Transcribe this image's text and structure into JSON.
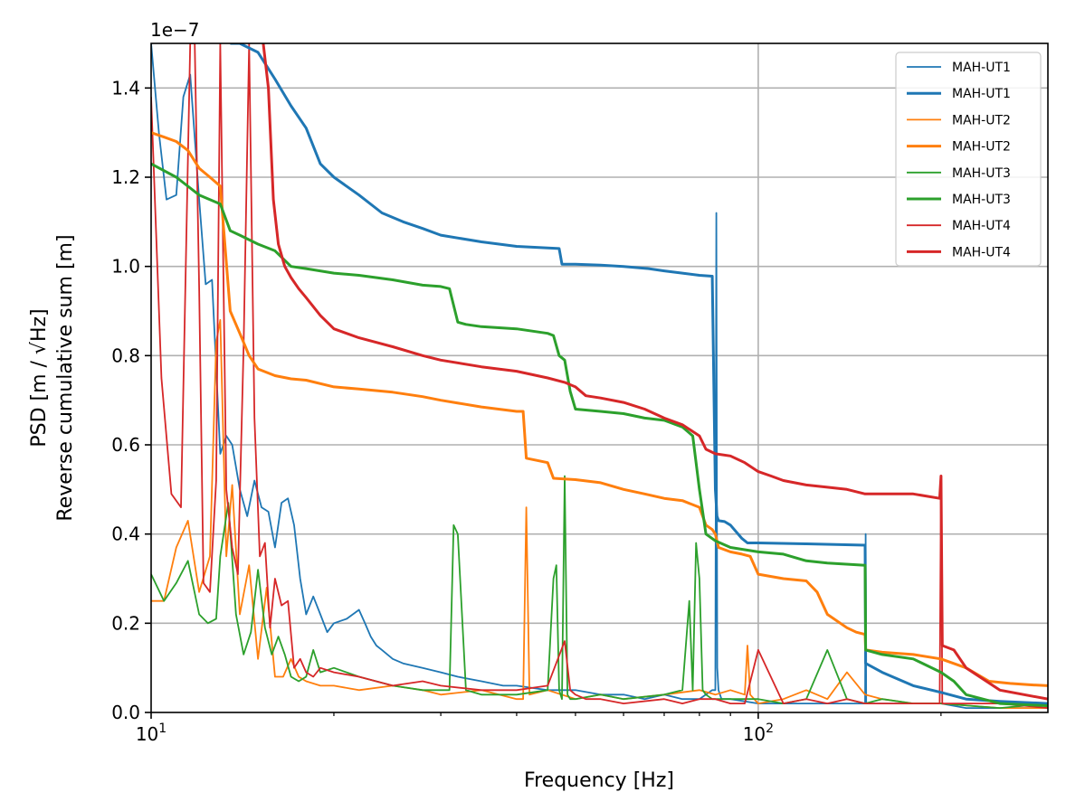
{
  "chart_data": {
    "type": "line",
    "xscale": "log",
    "xlim": [
      10,
      300
    ],
    "ylim": [
      0,
      1.5
    ],
    "y_multiplier_label": "1e−7",
    "xlabel": "Frequency [Hz]",
    "ylabel_line1": "PSD [m / √Hz]",
    "ylabel_line2": "Reverse cumulative sum [m]",
    "x_ticks": [
      {
        "value": 10,
        "base": "10",
        "exp": "1"
      },
      {
        "value": 100,
        "base": "10",
        "exp": "2"
      }
    ],
    "y_ticks": [
      {
        "value": 0.0,
        "label": "0.0"
      },
      {
        "value": 0.2,
        "label": "0.2"
      },
      {
        "value": 0.4,
        "label": "0.4"
      },
      {
        "value": 0.6,
        "label": "0.6"
      },
      {
        "value": 0.8,
        "label": "0.8"
      },
      {
        "value": 1.0,
        "label": "1.0"
      },
      {
        "value": 1.2,
        "label": "1.2"
      },
      {
        "value": 1.4,
        "label": "1.4"
      }
    ],
    "legend": {
      "location": "upper-right",
      "entries": [
        {
          "name": "MAH-UT1",
          "color": "#1f77b4",
          "style": "psd"
        },
        {
          "name": "MAH-UT1",
          "color": "#1f77b4",
          "style": "cumsum"
        },
        {
          "name": "MAH-UT2",
          "color": "#ff7f0e",
          "style": "psd"
        },
        {
          "name": "MAH-UT2",
          "color": "#ff7f0e",
          "style": "cumsum"
        },
        {
          "name": "MAH-UT3",
          "color": "#2ca02c",
          "style": "psd"
        },
        {
          "name": "MAH-UT3",
          "color": "#2ca02c",
          "style": "cumsum"
        },
        {
          "name": "MAH-UT4",
          "color": "#d62728",
          "style": "psd"
        },
        {
          "name": "MAH-UT4",
          "color": "#d62728",
          "style": "cumsum"
        }
      ]
    },
    "series": [
      {
        "name": "MAH-UT1",
        "style": "cumsum",
        "color": "#1f77b4",
        "x": [
          13.5,
          14,
          15,
          16,
          17,
          18,
          19,
          20,
          22,
          24,
          26,
          28,
          30,
          35,
          40,
          47,
          47.5,
          50,
          55,
          60,
          66,
          70,
          75,
          80,
          84,
          85,
          85.5,
          86,
          88,
          90,
          94,
          96,
          100,
          120,
          150,
          150.3,
          160,
          180,
          200,
          220,
          250,
          300
        ],
        "y": [
          1.55,
          1.52,
          1.48,
          1.42,
          1.36,
          1.31,
          1.23,
          1.2,
          1.16,
          1.12,
          1.1,
          1.085,
          1.07,
          1.055,
          1.045,
          1.04,
          1.005,
          1.005,
          1.003,
          1.0,
          0.995,
          0.99,
          0.985,
          0.98,
          0.978,
          0.5,
          0.44,
          0.43,
          0.428,
          0.42,
          0.39,
          0.38,
          0.38,
          0.378,
          0.375,
          0.11,
          0.09,
          0.06,
          0.045,
          0.03,
          0.025,
          0.02
        ]
      },
      {
        "name": "MAH-UT2",
        "style": "cumsum",
        "color": "#ff7f0e",
        "x": [
          10,
          10.5,
          11,
          11.5,
          12,
          12.5,
          13,
          13.5,
          14,
          14.5,
          15,
          16,
          17,
          18,
          20,
          22,
          25,
          28,
          30,
          35,
          40,
          41,
          41.5,
          45,
          46,
          50,
          55,
          60,
          65,
          70,
          75,
          80,
          82,
          84,
          85,
          86,
          90,
          94,
          97,
          100,
          110,
          120,
          125,
          130,
          140,
          145,
          150,
          150.3,
          160,
          180,
          200,
          220,
          240,
          260,
          280,
          300
        ],
        "y": [
          1.3,
          1.29,
          1.28,
          1.26,
          1.22,
          1.2,
          1.18,
          0.9,
          0.85,
          0.8,
          0.77,
          0.755,
          0.748,
          0.745,
          0.73,
          0.725,
          0.718,
          0.708,
          0.7,
          0.685,
          0.675,
          0.675,
          0.57,
          0.56,
          0.525,
          0.522,
          0.515,
          0.5,
          0.49,
          0.48,
          0.475,
          0.46,
          0.42,
          0.41,
          0.4,
          0.37,
          0.36,
          0.355,
          0.35,
          0.31,
          0.3,
          0.295,
          0.27,
          0.22,
          0.19,
          0.18,
          0.175,
          0.14,
          0.135,
          0.13,
          0.12,
          0.1,
          0.07,
          0.065,
          0.062,
          0.06
        ]
      },
      {
        "name": "MAH-UT3",
        "style": "cumsum",
        "color": "#2ca02c",
        "x": [
          10,
          11,
          12,
          13,
          13.5,
          14,
          15,
          16,
          17,
          18,
          20,
          22,
          25,
          28,
          30,
          31,
          32,
          33,
          35,
          40,
          45,
          46,
          47,
          48,
          49,
          50,
          55,
          60,
          65,
          70,
          75,
          78,
          80,
          82,
          85,
          90,
          100,
          110,
          120,
          130,
          150,
          150.3,
          160,
          180,
          200,
          210,
          220,
          250,
          300
        ],
        "y": [
          1.23,
          1.2,
          1.16,
          1.14,
          1.08,
          1.07,
          1.05,
          1.035,
          1.0,
          0.995,
          0.985,
          0.98,
          0.97,
          0.958,
          0.955,
          0.95,
          0.875,
          0.87,
          0.865,
          0.86,
          0.85,
          0.845,
          0.8,
          0.79,
          0.72,
          0.68,
          0.675,
          0.67,
          0.66,
          0.655,
          0.64,
          0.62,
          0.5,
          0.4,
          0.385,
          0.37,
          0.36,
          0.355,
          0.34,
          0.335,
          0.33,
          0.14,
          0.13,
          0.12,
          0.09,
          0.07,
          0.04,
          0.02,
          0.015
        ]
      },
      {
        "name": "MAH-UT4",
        "style": "cumsum",
        "color": "#d62728",
        "x": [
          15.3,
          15.6,
          15.9,
          16.2,
          16.6,
          17,
          17.5,
          18,
          19,
          20,
          22,
          25,
          28,
          30,
          35,
          40,
          45,
          48,
          50,
          52,
          55,
          60,
          65,
          70,
          75,
          80,
          82,
          85,
          90,
          95,
          100,
          105,
          110,
          120,
          130,
          140,
          150,
          160,
          180,
          199,
          200,
          201,
          210,
          220,
          250,
          300
        ],
        "y": [
          1.56,
          1.4,
          1.15,
          1.05,
          1.0,
          0.975,
          0.95,
          0.93,
          0.89,
          0.86,
          0.84,
          0.82,
          0.8,
          0.79,
          0.775,
          0.765,
          0.75,
          0.74,
          0.73,
          0.71,
          0.705,
          0.695,
          0.68,
          0.66,
          0.645,
          0.62,
          0.59,
          0.58,
          0.575,
          0.56,
          0.54,
          0.53,
          0.52,
          0.51,
          0.505,
          0.5,
          0.49,
          0.49,
          0.49,
          0.48,
          0.53,
          0.15,
          0.14,
          0.1,
          0.05,
          0.03
        ]
      },
      {
        "name": "MAH-UT1",
        "style": "psd",
        "color": "#1f77b4",
        "x": [
          10,
          10.3,
          10.6,
          11,
          11.3,
          11.6,
          12,
          12.3,
          12.6,
          13,
          13.3,
          13.6,
          14,
          14.4,
          14.8,
          15.2,
          15.6,
          16,
          16.4,
          16.8,
          17.2,
          17.6,
          18,
          18.5,
          19,
          19.5,
          20,
          21,
          22,
          22.5,
          23,
          23.5,
          24,
          25,
          26,
          28,
          30,
          32,
          35,
          38,
          40,
          45,
          50,
          55,
          60,
          65,
          70,
          75,
          80,
          84,
          85,
          85.3,
          85.6,
          86,
          87,
          90,
          100,
          120,
          150,
          150.3,
          150.6,
          160,
          180,
          200,
          220,
          250,
          300
        ],
        "y": [
          1.5,
          1.3,
          1.15,
          1.16,
          1.38,
          1.43,
          1.15,
          0.96,
          0.97,
          0.58,
          0.62,
          0.6,
          0.5,
          0.44,
          0.52,
          0.46,
          0.45,
          0.37,
          0.47,
          0.48,
          0.42,
          0.3,
          0.22,
          0.26,
          0.22,
          0.18,
          0.2,
          0.21,
          0.23,
          0.2,
          0.17,
          0.15,
          0.14,
          0.12,
          0.11,
          0.1,
          0.09,
          0.08,
          0.07,
          0.06,
          0.06,
          0.05,
          0.05,
          0.04,
          0.04,
          0.03,
          0.04,
          0.03,
          0.03,
          0.05,
          0.05,
          1.12,
          0.1,
          0.05,
          0.03,
          0.03,
          0.02,
          0.02,
          0.02,
          0.4,
          0.02,
          0.02,
          0.02,
          0.02,
          0.01,
          0.01,
          0.01
        ]
      },
      {
        "name": "MAH-UT2",
        "style": "psd",
        "color": "#ff7f0e",
        "x": [
          10,
          10.5,
          11,
          11.5,
          12,
          12.5,
          12.8,
          13,
          13.3,
          13.6,
          14,
          14.5,
          15,
          15.5,
          16,
          16.5,
          17,
          17.5,
          18,
          19,
          20,
          22,
          25,
          28,
          30,
          35,
          40,
          41,
          41.5,
          42,
          45,
          50,
          55,
          60,
          70,
          80,
          85,
          90,
          95,
          96,
          97,
          100,
          110,
          120,
          130,
          140,
          150,
          160,
          180,
          200,
          250,
          300
        ],
        "y": [
          0.25,
          0.25,
          0.37,
          0.43,
          0.27,
          0.35,
          0.83,
          0.88,
          0.35,
          0.51,
          0.22,
          0.33,
          0.12,
          0.28,
          0.08,
          0.08,
          0.12,
          0.08,
          0.07,
          0.06,
          0.06,
          0.05,
          0.06,
          0.05,
          0.04,
          0.05,
          0.03,
          0.03,
          0.46,
          0.04,
          0.05,
          0.03,
          0.04,
          0.03,
          0.04,
          0.05,
          0.04,
          0.05,
          0.04,
          0.15,
          0.04,
          0.02,
          0.03,
          0.05,
          0.03,
          0.09,
          0.04,
          0.03,
          0.02,
          0.02,
          0.01,
          0.01
        ]
      },
      {
        "name": "MAH-UT3",
        "style": "psd",
        "color": "#2ca02c",
        "x": [
          10,
          10.5,
          11,
          11.5,
          12,
          12.4,
          12.8,
          13,
          13.4,
          13.8,
          14.2,
          14.6,
          15,
          15.4,
          15.8,
          16.2,
          16.6,
          17,
          17.5,
          18,
          18.5,
          19,
          20,
          22,
          25,
          28,
          30,
          31,
          31.5,
          32,
          33,
          35,
          40,
          45,
          46,
          46.5,
          47,
          47.5,
          48,
          48.5,
          49,
          50,
          55,
          60,
          70,
          75,
          77,
          78,
          79,
          80,
          81,
          82,
          84,
          85,
          90,
          100,
          110,
          120,
          130,
          140,
          150,
          160,
          180,
          200,
          250,
          300
        ],
        "y": [
          0.31,
          0.25,
          0.29,
          0.34,
          0.22,
          0.2,
          0.21,
          0.35,
          0.47,
          0.22,
          0.13,
          0.18,
          0.32,
          0.19,
          0.13,
          0.17,
          0.13,
          0.08,
          0.07,
          0.08,
          0.14,
          0.09,
          0.1,
          0.08,
          0.06,
          0.05,
          0.05,
          0.05,
          0.42,
          0.4,
          0.05,
          0.04,
          0.04,
          0.05,
          0.3,
          0.33,
          0.05,
          0.03,
          0.53,
          0.04,
          0.03,
          0.03,
          0.04,
          0.03,
          0.04,
          0.05,
          0.25,
          0.05,
          0.38,
          0.3,
          0.05,
          0.04,
          0.03,
          0.03,
          0.03,
          0.03,
          0.02,
          0.03,
          0.14,
          0.03,
          0.02,
          0.03,
          0.02,
          0.02,
          0.01,
          0.02
        ]
      },
      {
        "name": "MAH-UT4",
        "style": "psd",
        "color": "#d62728",
        "x": [
          10,
          10.4,
          10.8,
          11.2,
          11.6,
          11.8,
          12.0,
          12.2,
          12.5,
          12.8,
          13.0,
          13.3,
          13.6,
          13.9,
          14.2,
          14.5,
          14.8,
          15.1,
          15.4,
          15.7,
          16.0,
          16.4,
          16.8,
          17.2,
          17.6,
          18.0,
          18.5,
          19,
          20,
          22,
          25,
          28,
          30,
          35,
          40,
          45,
          48,
          49,
          50,
          52,
          55,
          60,
          70,
          75,
          80,
          85,
          90,
          95,
          100,
          110,
          120,
          130,
          140,
          150,
          160,
          180,
          199,
          200,
          201,
          220,
          250,
          300
        ],
        "y": [
          1.38,
          0.75,
          0.49,
          0.46,
          1.55,
          1.52,
          0.95,
          0.29,
          0.27,
          0.52,
          1.52,
          0.5,
          0.37,
          0.31,
          0.82,
          1.55,
          0.66,
          0.35,
          0.38,
          0.19,
          0.3,
          0.24,
          0.25,
          0.1,
          0.12,
          0.09,
          0.08,
          0.1,
          0.09,
          0.08,
          0.06,
          0.07,
          0.06,
          0.05,
          0.05,
          0.06,
          0.16,
          0.05,
          0.04,
          0.03,
          0.03,
          0.02,
          0.03,
          0.02,
          0.03,
          0.03,
          0.02,
          0.02,
          0.14,
          0.02,
          0.03,
          0.02,
          0.03,
          0.02,
          0.02,
          0.02,
          0.02,
          0.53,
          0.02,
          0.02,
          0.02,
          0.01
        ]
      }
    ]
  }
}
